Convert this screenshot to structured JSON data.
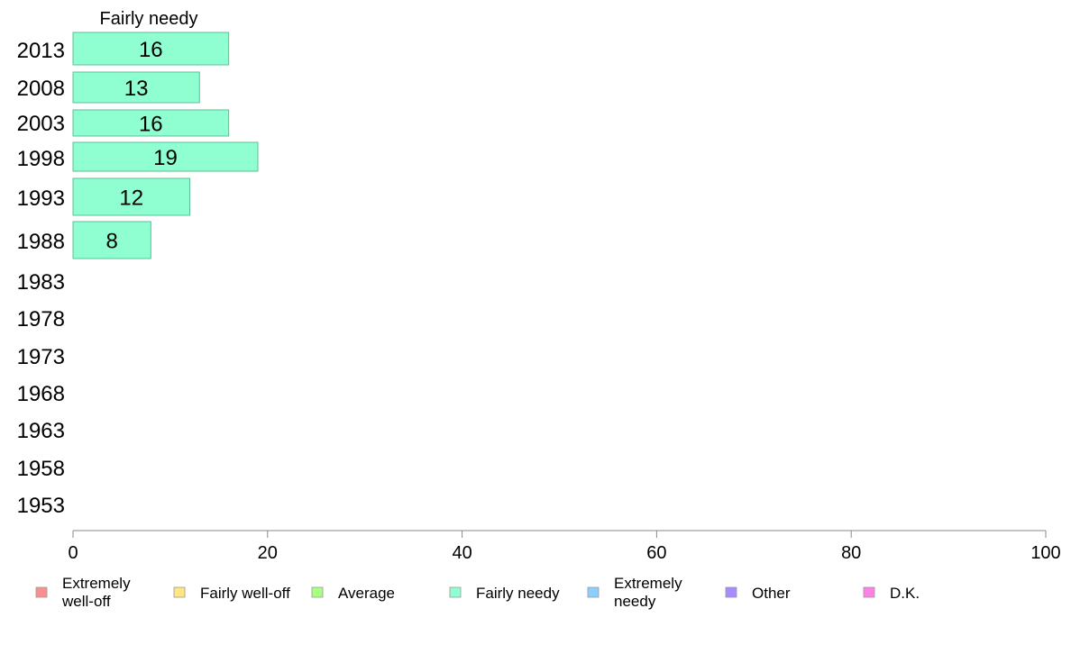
{
  "chart_data": {
    "type": "bar",
    "orientation": "horizontal",
    "title": "",
    "series_title": "Fairly needy",
    "categories": [
      "2013",
      "2008",
      "2003",
      "1998",
      "1993",
      "1988",
      "1983",
      "1978",
      "1973",
      "1968",
      "1963",
      "1958",
      "1953"
    ],
    "series": [
      {
        "name": "Fairly needy",
        "color": "#8fffd2",
        "values": [
          16,
          13,
          16,
          19,
          12,
          8,
          null,
          null,
          null,
          null,
          null,
          null,
          null
        ],
        "labels": [
          "16",
          "13",
          "16",
          "19",
          "12",
          "8",
          null,
          null,
          null,
          null,
          null,
          null,
          null
        ]
      }
    ],
    "xlim": [
      0,
      100
    ],
    "xticks": [
      "0",
      "20",
      "40",
      "60",
      "80",
      "100"
    ],
    "grid": false,
    "legend": {
      "position": "bottom",
      "items": [
        {
          "lines": [
            "Extremely",
            "well-off"
          ],
          "color": "#f99090"
        },
        {
          "lines": [
            "Fairly well-off"
          ],
          "color": "#ffe680"
        },
        {
          "lines": [
            "Average"
          ],
          "color": "#a8ff80"
        },
        {
          "lines": [
            "Fairly needy"
          ],
          "color": "#8fffd2"
        },
        {
          "lines": [
            "Extremely",
            "needy"
          ],
          "color": "#8ccfff"
        },
        {
          "lines": [
            "Other"
          ],
          "color": "#a68cff"
        },
        {
          "lines": [
            "D.K."
          ],
          "color": "#ff80e6"
        }
      ]
    }
  }
}
